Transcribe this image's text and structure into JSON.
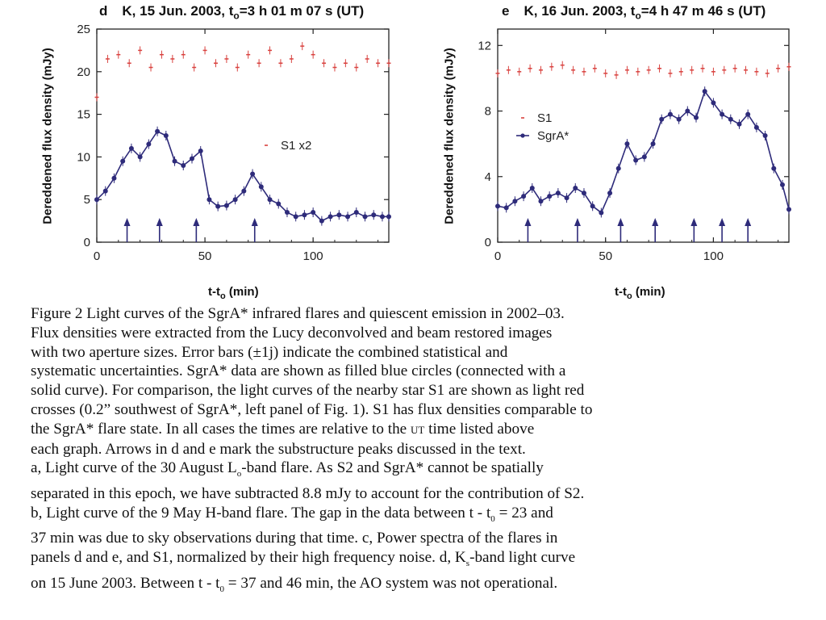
{
  "panels": [
    {
      "letter": "d",
      "band": "K,",
      "title_date": "15 Jun. 2003,",
      "title_t": "t",
      "title_sub": "o",
      "title_time": "=3 h 01 m 07 s (UT)",
      "ylabel": "Dereddened flux density (mJy)",
      "xlabel": "t-t",
      "xlabel_sub": "o",
      "xlabel_unit": "(min)",
      "legend": [
        "S1 x2"
      ]
    },
    {
      "letter": "e",
      "band": "K,",
      "title_date": "16 Jun. 2003,",
      "title_t": "t",
      "title_sub": "o",
      "title_time": "=4 h 47 m 46 s (UT)",
      "ylabel": "Dereddened flux density (mJy)",
      "xlabel": "t-t",
      "xlabel_sub": "o",
      "xlabel_unit": "(min)",
      "legend": [
        "S1",
        "SgrA*"
      ]
    }
  ],
  "chart_data": [
    {
      "type": "scatter",
      "title": "d K, 15 Jun. 2003, to=3 h 01 m 07 s (UT)",
      "ylabel": "Dereddened flux density (mJy)",
      "xlabel": "t-to (min)",
      "xlim": [
        0,
        135
      ],
      "ylim": [
        0,
        25
      ],
      "xticks": [
        "0",
        "50",
        "100"
      ],
      "yticks": [
        "0",
        "5",
        "10",
        "15",
        "20",
        "25"
      ],
      "legend_position": "center-right",
      "series": [
        {
          "name": "S1 x2",
          "style": "crosses",
          "color": "#d9423f",
          "x": [
            0,
            5,
            10,
            15,
            20,
            25,
            30,
            35,
            40,
            45,
            50,
            55,
            60,
            65,
            70,
            75,
            80,
            85,
            90,
            95,
            100,
            105,
            110,
            115,
            120,
            125,
            130,
            135
          ],
          "y": [
            17,
            21.5,
            22,
            21,
            22.5,
            20.5,
            22,
            21.5,
            22,
            20.5,
            22.5,
            21,
            21.5,
            20.5,
            22,
            21,
            22.5,
            21,
            21.5,
            23,
            22,
            21,
            20.5,
            21,
            20.5,
            21.5,
            21,
            21
          ]
        },
        {
          "name": "SgrA*",
          "style": "filled-circles-line",
          "color": "#2e2b7a",
          "x": [
            0,
            4,
            8,
            12,
            16,
            20,
            24,
            28,
            32,
            36,
            40,
            44,
            48,
            52,
            56,
            60,
            64,
            68,
            72,
            76,
            80,
            84,
            88,
            92,
            96,
            100,
            104,
            108,
            112,
            116,
            120,
            124,
            128,
            132,
            135
          ],
          "y": [
            5,
            6,
            7.5,
            9.5,
            11,
            10,
            11.5,
            13,
            12.5,
            9.5,
            9,
            9.8,
            10.7,
            5,
            4.2,
            4.3,
            5,
            6,
            8,
            6.5,
            5,
            4.5,
            3.5,
            3,
            3.2,
            3.5,
            2.5,
            3,
            3.2,
            3,
            3.5,
            3,
            3.2,
            3,
            3
          ]
        }
      ],
      "arrows_x": [
        14,
        29,
        46,
        73
      ]
    },
    {
      "type": "scatter",
      "title": "e K, 16 Jun. 2003, to=4 h 47 m 46 s (UT)",
      "ylabel": "Dereddened flux density (mJy)",
      "xlabel": "t-to (min)",
      "xlim": [
        0,
        135
      ],
      "ylim": [
        0,
        13
      ],
      "xticks": [
        "0",
        "50",
        "100"
      ],
      "yticks": [
        "0",
        "4",
        "8",
        "12"
      ],
      "legend_position": "center-left",
      "series": [
        {
          "name": "S1",
          "style": "crosses",
          "color": "#d9423f",
          "x": [
            0,
            5,
            10,
            15,
            20,
            25,
            30,
            35,
            40,
            45,
            50,
            55,
            60,
            65,
            70,
            75,
            80,
            85,
            90,
            95,
            100,
            105,
            110,
            115,
            120,
            125,
            130,
            135
          ],
          "y": [
            10.3,
            10.5,
            10.4,
            10.6,
            10.5,
            10.7,
            10.8,
            10.5,
            10.4,
            10.6,
            10.3,
            10.2,
            10.5,
            10.4,
            10.5,
            10.6,
            10.3,
            10.4,
            10.5,
            10.6,
            10.4,
            10.5,
            10.6,
            10.5,
            10.4,
            10.3,
            10.6,
            10.7
          ]
        },
        {
          "name": "SgrA*",
          "style": "filled-circles-line",
          "color": "#2e2b7a",
          "x": [
            0,
            4,
            8,
            12,
            16,
            20,
            24,
            28,
            32,
            36,
            40,
            44,
            48,
            52,
            56,
            60,
            64,
            68,
            72,
            76,
            80,
            84,
            88,
            92,
            96,
            100,
            104,
            108,
            112,
            116,
            120,
            124,
            128,
            132,
            135
          ],
          "y": [
            2.2,
            2.1,
            2.5,
            2.8,
            3.3,
            2.5,
            2.8,
            3,
            2.7,
            3.3,
            3,
            2.2,
            1.8,
            3,
            4.5,
            6,
            5,
            5.2,
            6,
            7.5,
            7.8,
            7.5,
            8,
            7.6,
            9.2,
            8.5,
            7.8,
            7.5,
            7.2,
            7.8,
            7,
            6.5,
            4.5,
            3.5,
            2
          ]
        }
      ],
      "arrows_x": [
        14,
        37,
        57,
        73,
        91,
        104,
        116
      ]
    }
  ],
  "caption": [
    "Figure 2 Light curves of the SgrA* infrared flares and quiescent emission in 2002–03.",
    "Flux densities were extracted from the Lucy deconvolved and beam restored images",
    "with two aperture sizes. Error bars (±1j) indicate the combined statistical and",
    "systematic uncertainties. SgrA* data are shown as filled blue circles (connected with a",
    "solid curve). For comparison, the light curves of the nearby star S1 are shown as light red",
    "crosses (0.2” southwest of SgrA*, left panel of Fig. 1). S1 has flux densities comparable to",
    "the SgrA* flare state. In all cases the times are relative to the",
    "time listed above",
    "each graph. Arrows in d and e mark the substructure peaks discussed in the text.",
    "a, Light curve of the 30 August L",
    "-band flare. As S2 and SgrA* cannot be spatially",
    "separated in this epoch, we have subtracted 8.8 mJy to account for the contribution of S2.",
    "b, Light curve of the 9 May H-band flare. The gap in the data between t - t",
    " = 23 and",
    "37 min was due to sky observations during that time. c, Power spectra of the flares in",
    "panels d and e, and S1, normalized by their high frequency noise. d, K",
    "-band light curve",
    "on 15 June 2003. Between t - t",
    " = 37 and 46 min, the AO system was not operational."
  ],
  "caption_small": {
    "ut": "UT",
    "o_sub": "o",
    "zero_sub": "0",
    "s_sub": "s"
  }
}
